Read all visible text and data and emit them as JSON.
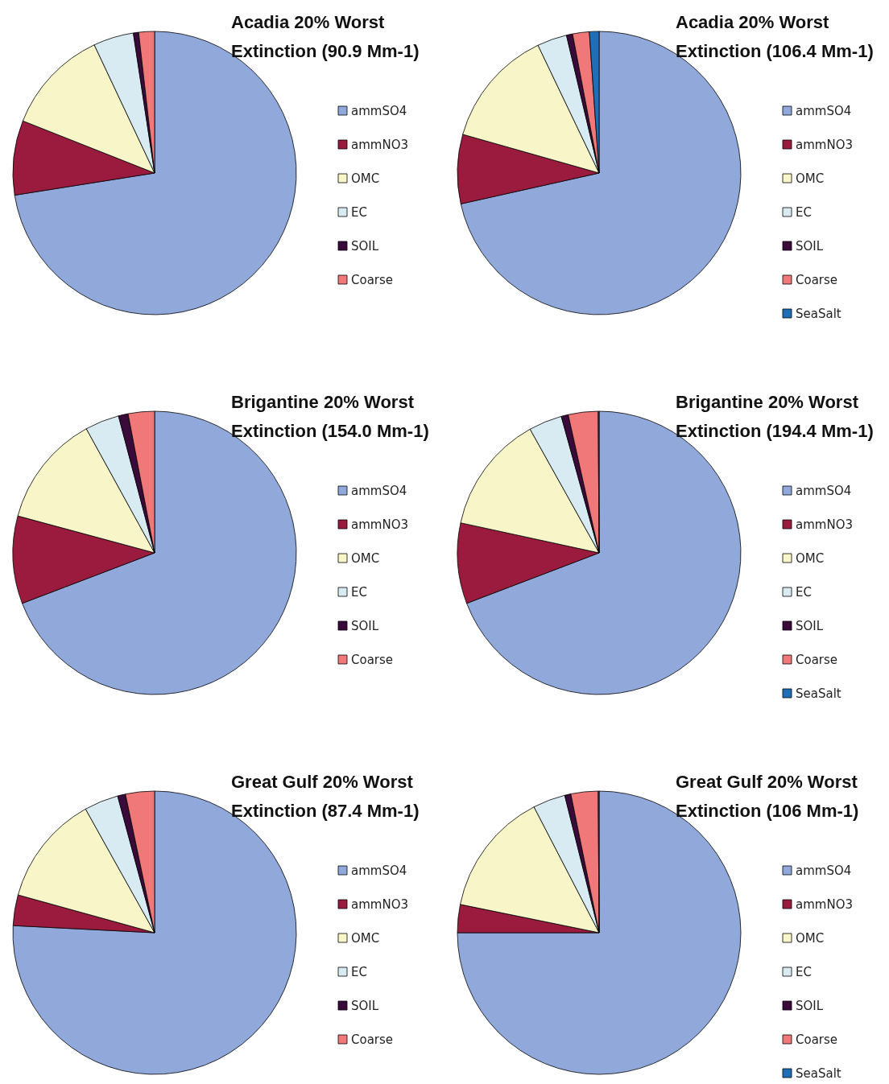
{
  "chart_data": [
    {
      "type": "pie",
      "title": "Acadia 20% Worst Extinction (90.9 Mm-1)",
      "categories": [
        "ammSO4",
        "ammNO3",
        "OMC",
        "EC",
        "SOIL",
        "Coarse"
      ],
      "values": [
        72.5,
        8.5,
        12,
        4.6,
        0.6,
        1.8
      ],
      "colors": [
        "#90a9da",
        "#9b1b3f",
        "#f8f5c8",
        "#d8eaf2",
        "#3a0a3a",
        "#f07878"
      ],
      "legend": "right"
    },
    {
      "type": "pie",
      "title": "Acadia 20% Worst Extinction (106.4 Mm-1)",
      "categories": [
        "ammSO4",
        "ammNO3",
        "OMC",
        "EC",
        "SOIL",
        "Coarse",
        "SeaSalt"
      ],
      "values": [
        71.5,
        7.9,
        13.5,
        3.4,
        0.7,
        1.9,
        1.1
      ],
      "colors": [
        "#90a9da",
        "#9b1b3f",
        "#f8f5c8",
        "#d8eaf2",
        "#3a0a3a",
        "#f07878",
        "#1e6fb8"
      ],
      "legend": "right"
    },
    {
      "type": "pie",
      "title": "Brigantine 20% Worst Extinction (154.0 Mm-1)",
      "categories": [
        "ammSO4",
        "ammNO3",
        "OMC",
        "EC",
        "SOIL",
        "Coarse"
      ],
      "values": [
        69.2,
        10,
        12.8,
        3.9,
        1.1,
        3
      ],
      "colors": [
        "#90a9da",
        "#9b1b3f",
        "#f8f5c8",
        "#d8eaf2",
        "#3a0a3a",
        "#f07878"
      ],
      "legend": "right"
    },
    {
      "type": "pie",
      "title": "Brigantine 20% Worst Extinction (194.4 Mm-1)",
      "categories": [
        "ammSO4",
        "ammNO3",
        "OMC",
        "EC",
        "SOIL",
        "Coarse",
        "SeaSalt"
      ],
      "values": [
        69.2,
        9.2,
        13.5,
        3.8,
        0.8,
        3.4,
        0.1
      ],
      "colors": [
        "#90a9da",
        "#9b1b3f",
        "#f8f5c8",
        "#d8eaf2",
        "#3a0a3a",
        "#f07878",
        "#1e6fb8"
      ],
      "legend": "right"
    },
    {
      "type": "pie",
      "title": "Great Gulf 20% Worst Extinction (87.4 Mm-1)",
      "categories": [
        "ammSO4",
        "ammNO3",
        "OMC",
        "EC",
        "SOIL",
        "Coarse"
      ],
      "values": [
        75.8,
        3.5,
        12.6,
        3.9,
        0.9,
        3.3
      ],
      "colors": [
        "#90a9da",
        "#9b1b3f",
        "#f8f5c8",
        "#d8eaf2",
        "#3a0a3a",
        "#f07878"
      ],
      "legend": "right"
    },
    {
      "type": "pie",
      "title": "Great Gulf 20% Worst Extinction (106 Mm-1)",
      "categories": [
        "ammSO4",
        "ammNO3",
        "OMC",
        "EC",
        "SOIL",
        "Coarse",
        "SeaSalt"
      ],
      "values": [
        75,
        3.2,
        14.2,
        3.7,
        0.7,
        3.1,
        0.1
      ],
      "colors": [
        "#90a9da",
        "#9b1b3f",
        "#f8f5c8",
        "#d8eaf2",
        "#3a0a3a",
        "#f07878",
        "#1e6fb8"
      ],
      "legend": "right"
    }
  ]
}
